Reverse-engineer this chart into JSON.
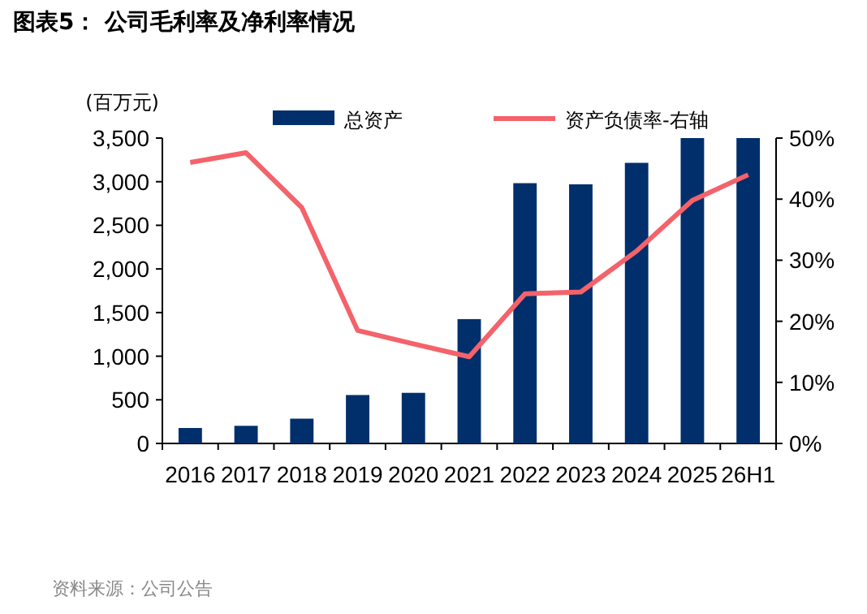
{
  "chart_data": {
    "type": "bar",
    "title": "图表5：  公司毛利率及净利率情况",
    "ylabel": "(百万元)",
    "annotations": [
      "资料来源：公司公告"
    ],
    "categories": [
      "2016",
      "2017",
      "2018",
      "2019",
      "2020",
      "2021",
      "2022",
      "2023",
      "2024",
      "2025",
      "26H1"
    ],
    "series": [
      {
        "name": "总资产",
        "color": "#002f6c",
        "values": [
          177,
          202,
          284,
          555,
          580,
          1425,
          2983,
          2970,
          3216,
          3500,
          3500
        ]
      },
      {
        "name": "资产负债率-右轴",
        "type": "line",
        "axis": "y2",
        "color": "#f4626a",
        "values": [
          46.0,
          47.6,
          38.6,
          18.5,
          16.3,
          14.2,
          24.5,
          24.8,
          31.5,
          39.8,
          44.0
        ]
      }
    ],
    "ylim": [
      0,
      3500
    ],
    "yticks": [
      0,
      500,
      {
        "value": 1000,
        "label": "1,000"
      },
      {
        "value": 1500,
        "label": "1,500"
      },
      {
        "value": 2000,
        "label": "2,000"
      },
      {
        "value": 2500,
        "label": "2,500"
      },
      {
        "value": 3000,
        "label": "3,000"
      },
      {
        "value": 3500,
        "label": "3,500"
      }
    ],
    "y2lim": [
      0,
      50
    ],
    "y2ticks": [
      {
        "value": 0,
        "label": "0%"
      },
      {
        "value": 10,
        "label": "10%"
      },
      {
        "value": 20,
        "label": "20%"
      },
      {
        "value": 30,
        "label": "30%"
      },
      {
        "value": 40,
        "label": "40%"
      },
      {
        "value": 50,
        "label": "50%"
      }
    ],
    "legend": "top",
    "grid": false
  }
}
